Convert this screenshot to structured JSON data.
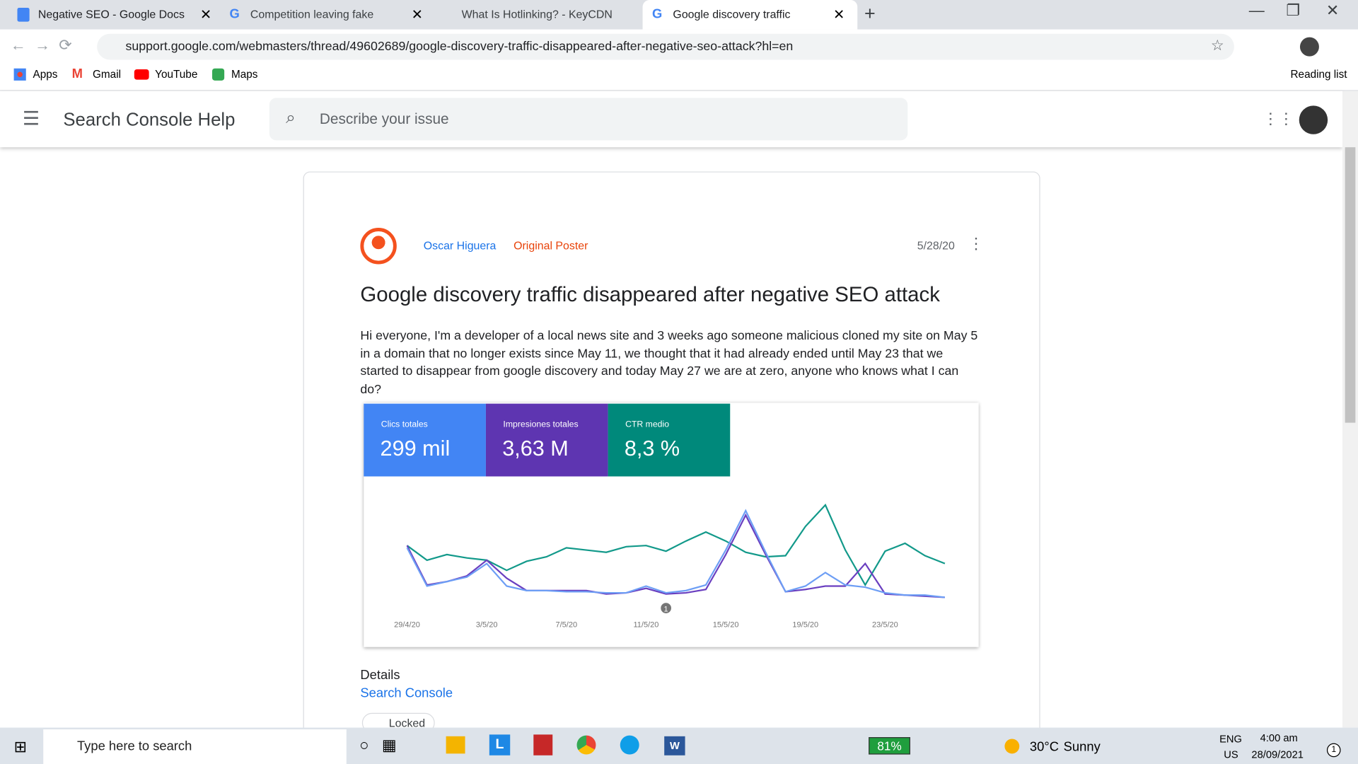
{
  "tabs": [
    "Negative SEO - Google Docs",
    "Competition leaving fake reviews",
    "What Is Hotlinking? - KeyCDN Su",
    "Google discovery traffic disappea"
  ],
  "address": {
    "url": "support.google.com/webmasters/thread/49602689/google-discovery-traffic-disappeared-after-negative-seo-attack?hl=en"
  },
  "bookmarks": [
    "Apps",
    "Gmail",
    "YouTube",
    "Maps"
  ],
  "reading_list": "Reading list",
  "header": {
    "title": "Search Console Help",
    "search_placeholder": "Describe your issue"
  },
  "post": {
    "author": "Oscar Higuera",
    "badge": "Original Poster",
    "date": "5/28/20",
    "title": "Google discovery traffic disappeared after negative SEO attack",
    "body": "Hi everyone, I'm a developer of a local news site and 3 weeks ago someone malicious cloned my site on May 5 in a domain that no longer exists since May 11, we thought that it had already ended until May 23 that we started to disappear from google discovery and today May 27 we are at zero, anyone who knows what I can do?",
    "metrics": [
      {
        "label": "Clics totales",
        "value": "299 mil",
        "color": "#4285f4"
      },
      {
        "label": "Impresiones totales",
        "value": "3,63 M",
        "color": "#5e35b1"
      },
      {
        "label": "CTR medio",
        "value": "8,3 %",
        "color": "#00897b"
      }
    ],
    "chart_data": {
      "type": "line",
      "annotation": "1",
      "ylim": [
        0,
        100
      ],
      "categories": [
        "29/4/20",
        null,
        null,
        null,
        "3/5/20",
        null,
        null,
        null,
        "7/5/20",
        null,
        null,
        null,
        "11/5/20",
        null,
        null,
        null,
        "15/5/20",
        null,
        null,
        null,
        "19/5/20",
        null,
        null,
        null,
        "23/5/20",
        null,
        null,
        null
      ],
      "series": [
        {
          "name": "CTR medio",
          "color": "#12998a",
          "values": [
            54,
            41,
            46,
            43,
            41,
            32,
            40,
            44,
            52,
            50,
            48,
            53,
            54,
            49,
            58,
            66,
            58,
            48,
            44,
            45,
            71,
            90,
            50,
            19,
            49,
            56,
            45,
            38
          ]
        },
        {
          "name": "Impresiones totales",
          "color": "#6a3fc0",
          "values": [
            54,
            19,
            22,
            27,
            41,
            25,
            14,
            14,
            14,
            14,
            11,
            12,
            16,
            11,
            12,
            15,
            46,
            81,
            46,
            13,
            15,
            18,
            18,
            38,
            11,
            10,
            9,
            8
          ]
        },
        {
          "name": "Clics totales",
          "color": "#6d9ef5",
          "values": [
            52,
            18,
            22,
            26,
            38,
            18,
            14,
            14,
            13,
            13,
            12,
            12,
            18,
            12,
            14,
            19,
            50,
            85,
            48,
            13,
            18,
            30,
            19,
            17,
            12,
            10,
            10,
            8
          ]
        }
      ]
    },
    "details": {
      "heading": "Details",
      "product": "Search Console",
      "status": "Locked"
    }
  },
  "taskbar": {
    "search": "Type here to search",
    "battery": "81%",
    "temperature": "30°C",
    "weather": "Sunny",
    "lang": "ENG",
    "region": "US",
    "time": "4:00 am",
    "date": "28/09/2021",
    "notifications": "1"
  }
}
